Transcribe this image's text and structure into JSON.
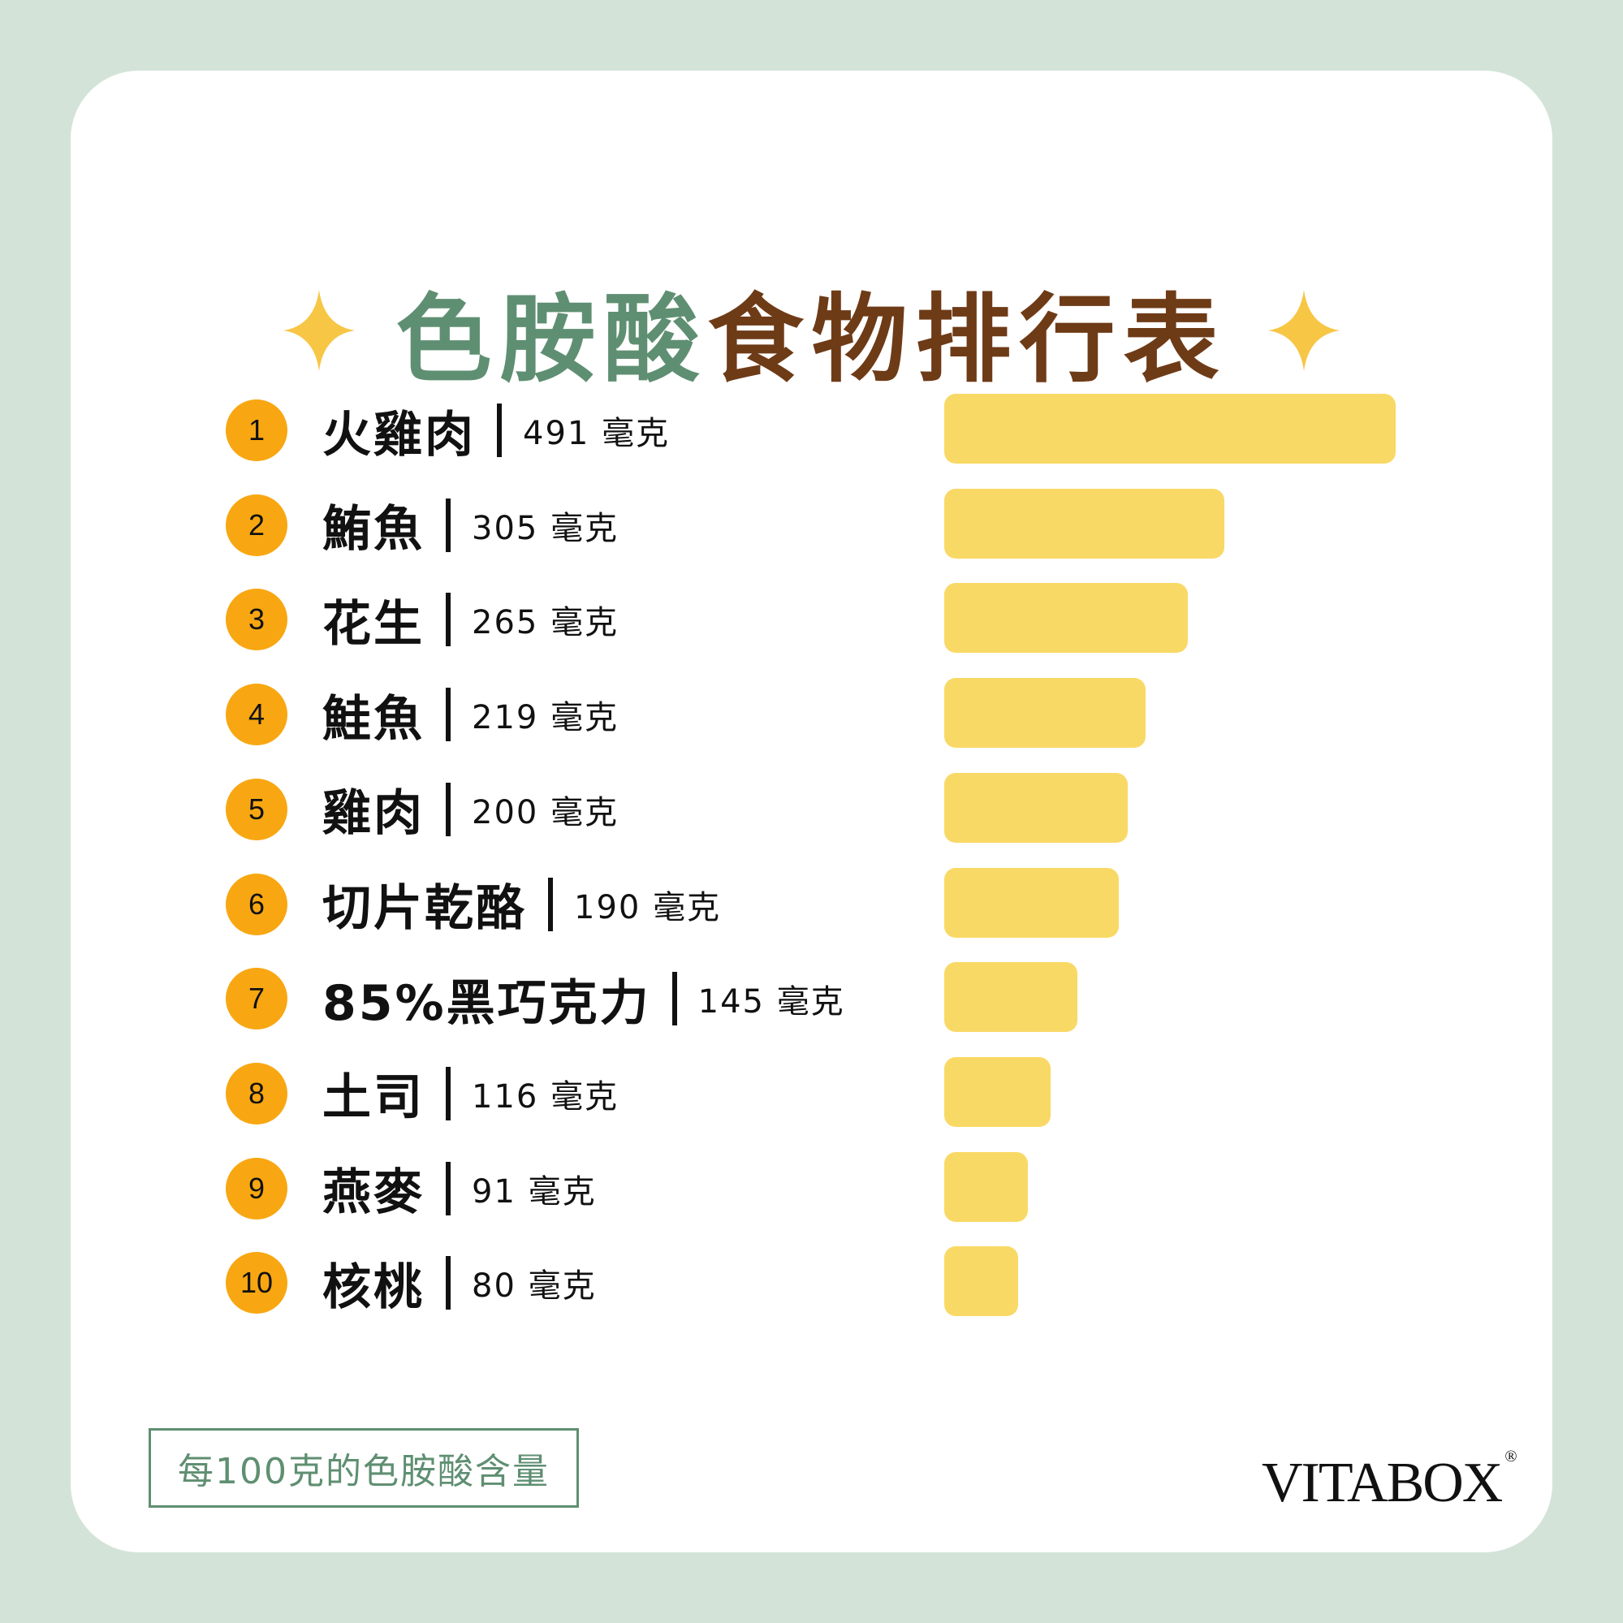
{
  "title": {
    "part1": "色胺酸",
    "part2": "食物排行表"
  },
  "note": "每100克的色胺酸含量",
  "brand": {
    "name": "VITABOX",
    "mark": "®"
  },
  "colors": {
    "accent_green": "#5f8f72",
    "accent_brown": "#6e3b17",
    "bar": "#f9d966",
    "rank_badge": "#f8a712",
    "sparkle": "#f7c645"
  },
  "chart_data": {
    "type": "bar",
    "orientation": "horizontal",
    "categories": [
      "火雞肉",
      "鮪魚",
      "花生",
      "鮭魚",
      "雞肉",
      "切片乾酪",
      "85%黑巧克力",
      "土司",
      "燕麥",
      "核桃"
    ],
    "values": [
      491,
      305,
      265,
      219,
      200,
      190,
      145,
      116,
      91,
      80
    ],
    "ranks": [
      "1",
      "2",
      "3",
      "4",
      "5",
      "6",
      "7",
      "8",
      "9",
      "10"
    ],
    "value_labels": [
      "491 毫克",
      "305 毫克",
      "265 毫克",
      "219 毫克",
      "200 毫克",
      "190 毫克",
      "145 毫克",
      "116 毫克",
      "91 毫克",
      "80 毫克"
    ],
    "xlim": [
      0,
      491
    ],
    "grid": false
  }
}
